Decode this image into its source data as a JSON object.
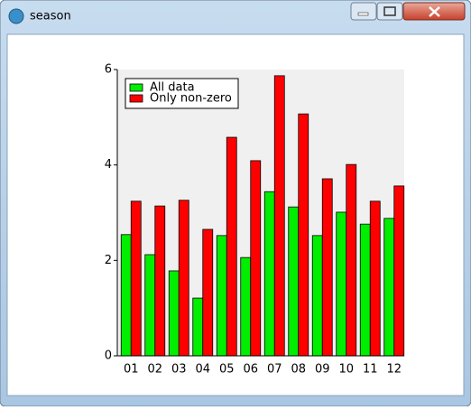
{
  "window": {
    "title": "season"
  },
  "chart_data": {
    "type": "bar",
    "categories": [
      "01",
      "02",
      "03",
      "04",
      "05",
      "06",
      "07",
      "08",
      "09",
      "10",
      "11",
      "12"
    ],
    "series": [
      {
        "name": "All data",
        "color": "#00ee00",
        "values": [
          2.54,
          2.12,
          1.78,
          1.21,
          2.52,
          2.06,
          3.44,
          3.12,
          2.52,
          3.01,
          2.76,
          2.88
        ]
      },
      {
        "name": "Only non-zero",
        "color": "#ff0000",
        "values": [
          3.24,
          3.14,
          3.26,
          2.65,
          4.58,
          4.09,
          5.87,
          5.07,
          3.71,
          4.01,
          3.24,
          3.56
        ]
      }
    ],
    "ylim": [
      0,
      6
    ],
    "yticks": [
      0,
      2,
      4,
      6
    ],
    "legend": "upper left"
  }
}
